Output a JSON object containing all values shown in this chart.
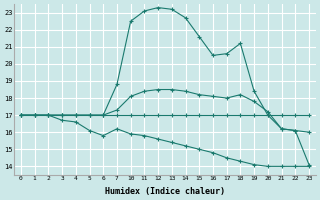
{
  "bg_color": "#cce8e8",
  "grid_color": "#ffffff",
  "line_color": "#1a7a6e",
  "marker": "+",
  "xlabel": "Humidex (Indice chaleur)",
  "ylim": [
    13.5,
    23.5
  ],
  "yticks": [
    14,
    15,
    16,
    17,
    18,
    19,
    20,
    21,
    22,
    23
  ],
  "tick_labels": [
    "0",
    "1",
    "2",
    "3",
    "4",
    "5",
    "6",
    "7",
    "10",
    "11",
    "12",
    "13",
    "14",
    "15",
    "16",
    "17",
    "18",
    "19",
    "20",
    "21",
    "22",
    "23"
  ],
  "series1_y": [
    17,
    17,
    17,
    17,
    17,
    17,
    17,
    17,
    17,
    17,
    17,
    17,
    17,
    17,
    17,
    17,
    17,
    17,
    17,
    17,
    17,
    17
  ],
  "series2_y": [
    17,
    17,
    17,
    16.7,
    16.6,
    16.1,
    15.8,
    16.2,
    15.9,
    15.8,
    15.6,
    15.4,
    15.2,
    15.0,
    14.8,
    14.5,
    14.3,
    14.1,
    14.0,
    14.0,
    14.0,
    14.0
  ],
  "series3_y": [
    17,
    17,
    17,
    17,
    17,
    17,
    17,
    17.3,
    18.1,
    18.4,
    18.5,
    18.5,
    18.4,
    18.2,
    18.1,
    18.0,
    18.2,
    17.8,
    17.2,
    16.2,
    16.1,
    16.0
  ],
  "series4_y": [
    17,
    17,
    17,
    17,
    17,
    17,
    17,
    18.8,
    22.5,
    23.1,
    23.3,
    23.2,
    22.7,
    21.6,
    20.5,
    20.6,
    21.2,
    18.4,
    17.0,
    16.2,
    16.1,
    14.1
  ]
}
